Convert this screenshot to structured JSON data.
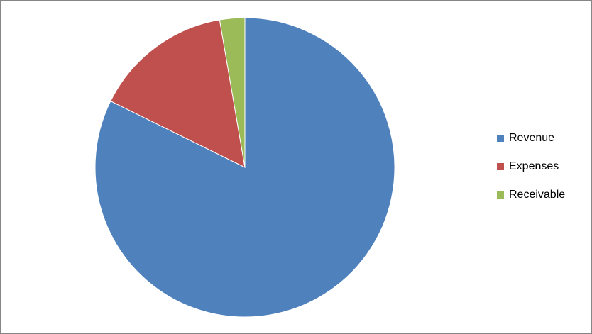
{
  "chart_data": {
    "type": "pie",
    "title": "",
    "categories": [
      "Revenue",
      "Expenses",
      "Receivable"
    ],
    "values": [
      82.3,
      15.0,
      2.7
    ],
    "unit": "percent (estimated)",
    "colors": [
      "#4F81BD",
      "#C0504D",
      "#9BBB59"
    ],
    "start_angle": "12 o'clock",
    "direction": "clockwise",
    "legend": {
      "position": "right",
      "entries": [
        "Revenue",
        "Expenses",
        "Receivable"
      ]
    }
  }
}
